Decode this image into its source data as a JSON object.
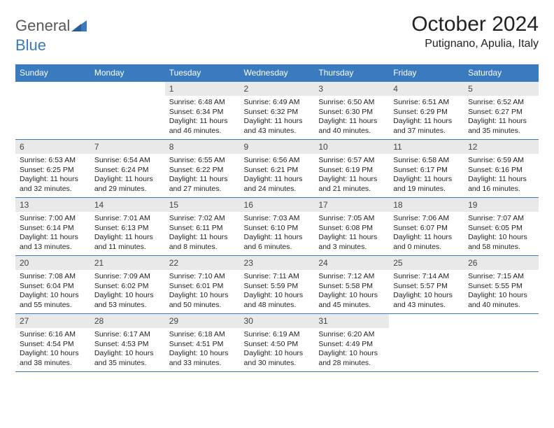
{
  "brand": {
    "part1": "General",
    "part2": "Blue"
  },
  "title": {
    "month": "October 2024",
    "location": "Putignano, Apulia, Italy"
  },
  "colors": {
    "header_bg": "#3a7bbf",
    "header_fg": "#ffffff",
    "daynum_bg": "#e9e9e9",
    "rule": "#3a7bbf",
    "logo_gray": "#585858",
    "logo_blue": "#3a7bbf"
  },
  "weekdays": [
    "Sunday",
    "Monday",
    "Tuesday",
    "Wednesday",
    "Thursday",
    "Friday",
    "Saturday"
  ],
  "weeks": [
    [
      {
        "blank": true
      },
      {
        "blank": true
      },
      {
        "n": "1",
        "sunrise": "Sunrise: 6:48 AM",
        "sunset": "Sunset: 6:34 PM",
        "day": "Daylight: 11 hours and 46 minutes."
      },
      {
        "n": "2",
        "sunrise": "Sunrise: 6:49 AM",
        "sunset": "Sunset: 6:32 PM",
        "day": "Daylight: 11 hours and 43 minutes."
      },
      {
        "n": "3",
        "sunrise": "Sunrise: 6:50 AM",
        "sunset": "Sunset: 6:30 PM",
        "day": "Daylight: 11 hours and 40 minutes."
      },
      {
        "n": "4",
        "sunrise": "Sunrise: 6:51 AM",
        "sunset": "Sunset: 6:29 PM",
        "day": "Daylight: 11 hours and 37 minutes."
      },
      {
        "n": "5",
        "sunrise": "Sunrise: 6:52 AM",
        "sunset": "Sunset: 6:27 PM",
        "day": "Daylight: 11 hours and 35 minutes."
      }
    ],
    [
      {
        "n": "6",
        "sunrise": "Sunrise: 6:53 AM",
        "sunset": "Sunset: 6:25 PM",
        "day": "Daylight: 11 hours and 32 minutes."
      },
      {
        "n": "7",
        "sunrise": "Sunrise: 6:54 AM",
        "sunset": "Sunset: 6:24 PM",
        "day": "Daylight: 11 hours and 29 minutes."
      },
      {
        "n": "8",
        "sunrise": "Sunrise: 6:55 AM",
        "sunset": "Sunset: 6:22 PM",
        "day": "Daylight: 11 hours and 27 minutes."
      },
      {
        "n": "9",
        "sunrise": "Sunrise: 6:56 AM",
        "sunset": "Sunset: 6:21 PM",
        "day": "Daylight: 11 hours and 24 minutes."
      },
      {
        "n": "10",
        "sunrise": "Sunrise: 6:57 AM",
        "sunset": "Sunset: 6:19 PM",
        "day": "Daylight: 11 hours and 21 minutes."
      },
      {
        "n": "11",
        "sunrise": "Sunrise: 6:58 AM",
        "sunset": "Sunset: 6:17 PM",
        "day": "Daylight: 11 hours and 19 minutes."
      },
      {
        "n": "12",
        "sunrise": "Sunrise: 6:59 AM",
        "sunset": "Sunset: 6:16 PM",
        "day": "Daylight: 11 hours and 16 minutes."
      }
    ],
    [
      {
        "n": "13",
        "sunrise": "Sunrise: 7:00 AM",
        "sunset": "Sunset: 6:14 PM",
        "day": "Daylight: 11 hours and 13 minutes."
      },
      {
        "n": "14",
        "sunrise": "Sunrise: 7:01 AM",
        "sunset": "Sunset: 6:13 PM",
        "day": "Daylight: 11 hours and 11 minutes."
      },
      {
        "n": "15",
        "sunrise": "Sunrise: 7:02 AM",
        "sunset": "Sunset: 6:11 PM",
        "day": "Daylight: 11 hours and 8 minutes."
      },
      {
        "n": "16",
        "sunrise": "Sunrise: 7:03 AM",
        "sunset": "Sunset: 6:10 PM",
        "day": "Daylight: 11 hours and 6 minutes."
      },
      {
        "n": "17",
        "sunrise": "Sunrise: 7:05 AM",
        "sunset": "Sunset: 6:08 PM",
        "day": "Daylight: 11 hours and 3 minutes."
      },
      {
        "n": "18",
        "sunrise": "Sunrise: 7:06 AM",
        "sunset": "Sunset: 6:07 PM",
        "day": "Daylight: 11 hours and 0 minutes."
      },
      {
        "n": "19",
        "sunrise": "Sunrise: 7:07 AM",
        "sunset": "Sunset: 6:05 PM",
        "day": "Daylight: 10 hours and 58 minutes."
      }
    ],
    [
      {
        "n": "20",
        "sunrise": "Sunrise: 7:08 AM",
        "sunset": "Sunset: 6:04 PM",
        "day": "Daylight: 10 hours and 55 minutes."
      },
      {
        "n": "21",
        "sunrise": "Sunrise: 7:09 AM",
        "sunset": "Sunset: 6:02 PM",
        "day": "Daylight: 10 hours and 53 minutes."
      },
      {
        "n": "22",
        "sunrise": "Sunrise: 7:10 AM",
        "sunset": "Sunset: 6:01 PM",
        "day": "Daylight: 10 hours and 50 minutes."
      },
      {
        "n": "23",
        "sunrise": "Sunrise: 7:11 AM",
        "sunset": "Sunset: 5:59 PM",
        "day": "Daylight: 10 hours and 48 minutes."
      },
      {
        "n": "24",
        "sunrise": "Sunrise: 7:12 AM",
        "sunset": "Sunset: 5:58 PM",
        "day": "Daylight: 10 hours and 45 minutes."
      },
      {
        "n": "25",
        "sunrise": "Sunrise: 7:14 AM",
        "sunset": "Sunset: 5:57 PM",
        "day": "Daylight: 10 hours and 43 minutes."
      },
      {
        "n": "26",
        "sunrise": "Sunrise: 7:15 AM",
        "sunset": "Sunset: 5:55 PM",
        "day": "Daylight: 10 hours and 40 minutes."
      }
    ],
    [
      {
        "n": "27",
        "sunrise": "Sunrise: 6:16 AM",
        "sunset": "Sunset: 4:54 PM",
        "day": "Daylight: 10 hours and 38 minutes."
      },
      {
        "n": "28",
        "sunrise": "Sunrise: 6:17 AM",
        "sunset": "Sunset: 4:53 PM",
        "day": "Daylight: 10 hours and 35 minutes."
      },
      {
        "n": "29",
        "sunrise": "Sunrise: 6:18 AM",
        "sunset": "Sunset: 4:51 PM",
        "day": "Daylight: 10 hours and 33 minutes."
      },
      {
        "n": "30",
        "sunrise": "Sunrise: 6:19 AM",
        "sunset": "Sunset: 4:50 PM",
        "day": "Daylight: 10 hours and 30 minutes."
      },
      {
        "n": "31",
        "sunrise": "Sunrise: 6:20 AM",
        "sunset": "Sunset: 4:49 PM",
        "day": "Daylight: 10 hours and 28 minutes."
      },
      {
        "blank": true
      },
      {
        "blank": true
      }
    ]
  ]
}
